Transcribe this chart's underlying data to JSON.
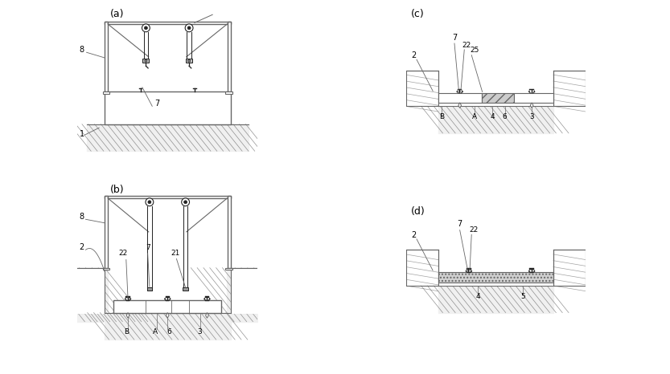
{
  "bg_color": "#ffffff",
  "line_color": "#666666",
  "dark_color": "#222222",
  "mid_gray": "#999999",
  "label_a": "(a)",
  "label_b": "(b)",
  "label_c": "(c)",
  "label_d": "(d)",
  "hatch_gray": "#bbbbbb",
  "slab_fill": "#e8e8e8",
  "grout_fill": "#d0d0d0"
}
